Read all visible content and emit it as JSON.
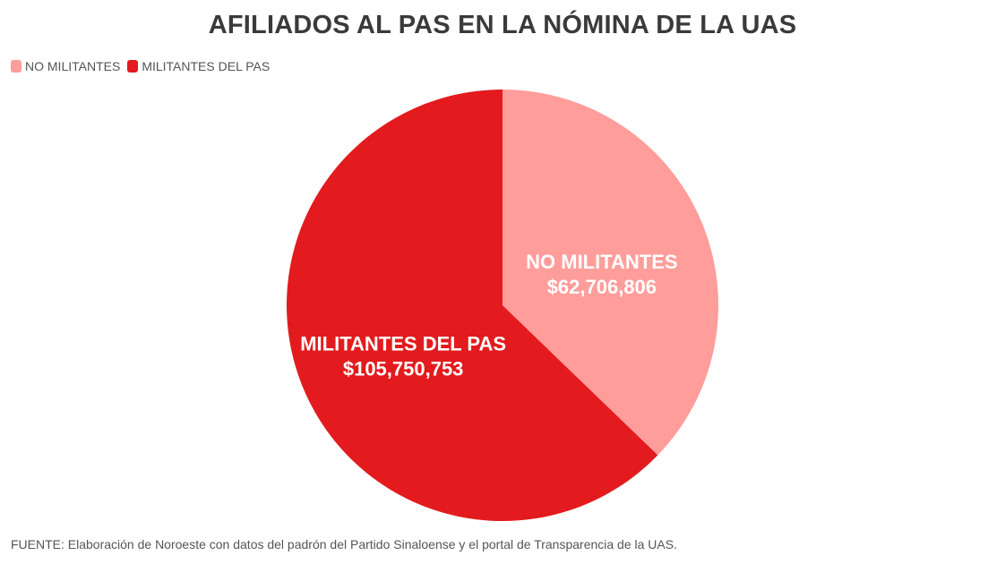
{
  "title": "AFILIADOS AL PAS EN LA NÓMINA DE LA UAS",
  "source": "FUENTE: Elaboración de Noroeste con datos del padrón del Partido Sinaloense y el portal de Transparencia de la UAS.",
  "chart_data": {
    "type": "pie",
    "title": "AFILIADOS AL PAS EN LA NÓMINA DE LA UAS",
    "legend_position": "top-left",
    "slices": [
      {
        "name": "NO MILITANTES",
        "value": 62706806,
        "value_label": "$62,706,806",
        "color": "#ff9d9b"
      },
      {
        "name": "MILITANTES DEL PAS",
        "value": 105750753,
        "value_label": "$105,750,753",
        "color": "#e31b1e"
      }
    ]
  }
}
